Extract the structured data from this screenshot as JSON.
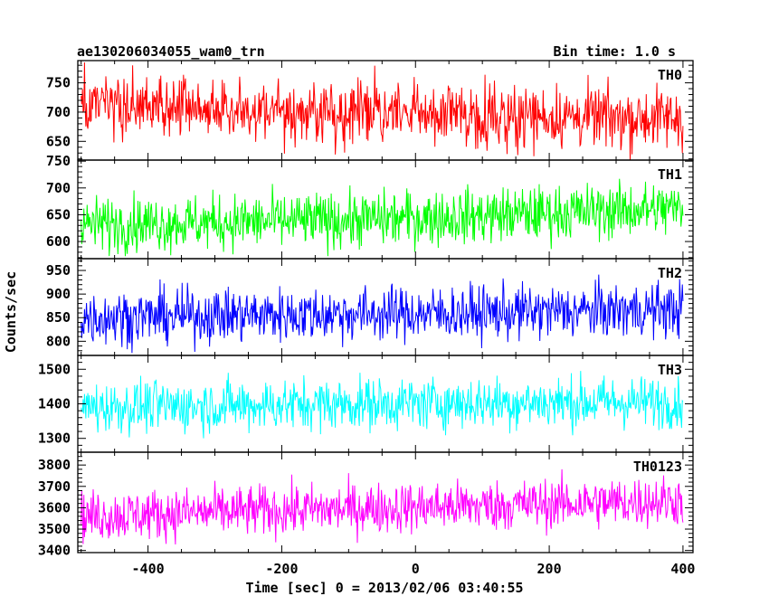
{
  "header": {
    "title": "ae130206034055_wam0_trn",
    "bin_time": "Bin time: 1.0 s"
  },
  "chart_data": {
    "type": "line",
    "title": "ae130206034055_wam0_trn",
    "subtitle": "Bin time: 1.0 s",
    "xlabel": "Time [sec] 0 = 2013/02/06 03:40:55",
    "ylabel": "Counts/sec",
    "xlim": [
      -505,
      415
    ],
    "x_ticks": [
      -400,
      -200,
      0,
      200,
      400
    ],
    "x_range_data": [
      -500,
      400
    ],
    "bin_seconds": 1.0,
    "grid": false,
    "panels": [
      {
        "name": "TH0",
        "color": "#ff0000",
        "ylim": [
          618,
          788
        ],
        "y_ticks": [
          650,
          700,
          750
        ],
        "mean_trend": [
          [
            -500,
            710
          ],
          [
            -300,
            705
          ],
          [
            -100,
            700
          ],
          [
            100,
            695
          ],
          [
            300,
            690
          ],
          [
            400,
            690
          ]
        ],
        "approx_spread": 27
      },
      {
        "name": "TH1",
        "color": "#00ff00",
        "ylim": [
          568,
          752
        ],
        "y_ticks": [
          600,
          650,
          700,
          750
        ],
        "mean_trend": [
          [
            -500,
            632
          ],
          [
            -300,
            636
          ],
          [
            -100,
            640
          ],
          [
            100,
            648
          ],
          [
            300,
            658
          ],
          [
            400,
            662
          ]
        ],
        "approx_spread": 26
      },
      {
        "name": "TH2",
        "color": "#0000ff",
        "ylim": [
          770,
          975
        ],
        "y_ticks": [
          800,
          850,
          900,
          950
        ],
        "mean_trend": [
          [
            -500,
            850
          ],
          [
            -300,
            855
          ],
          [
            -100,
            858
          ],
          [
            100,
            860
          ],
          [
            300,
            865
          ],
          [
            400,
            868
          ]
        ],
        "approx_spread": 29
      },
      {
        "name": "TH3",
        "color": "#00ffff",
        "ylim": [
          1260,
          1540
        ],
        "y_ticks": [
          1300,
          1400,
          1500
        ],
        "mean_trend": [
          [
            -500,
            1390
          ],
          [
            -300,
            1395
          ],
          [
            -100,
            1400
          ],
          [
            100,
            1403
          ],
          [
            300,
            1405
          ],
          [
            400,
            1405
          ]
        ],
        "approx_spread": 38
      },
      {
        "name": "TH0123",
        "color": "#ff00ff",
        "ylim": [
          3390,
          3860
        ],
        "y_ticks": [
          3400,
          3500,
          3600,
          3700,
          3800
        ],
        "mean_trend": [
          [
            -500,
            3560
          ],
          [
            -300,
            3580
          ],
          [
            -100,
            3595
          ],
          [
            100,
            3610
          ],
          [
            300,
            3625
          ],
          [
            400,
            3635
          ]
        ],
        "approx_spread": 60
      }
    ]
  }
}
